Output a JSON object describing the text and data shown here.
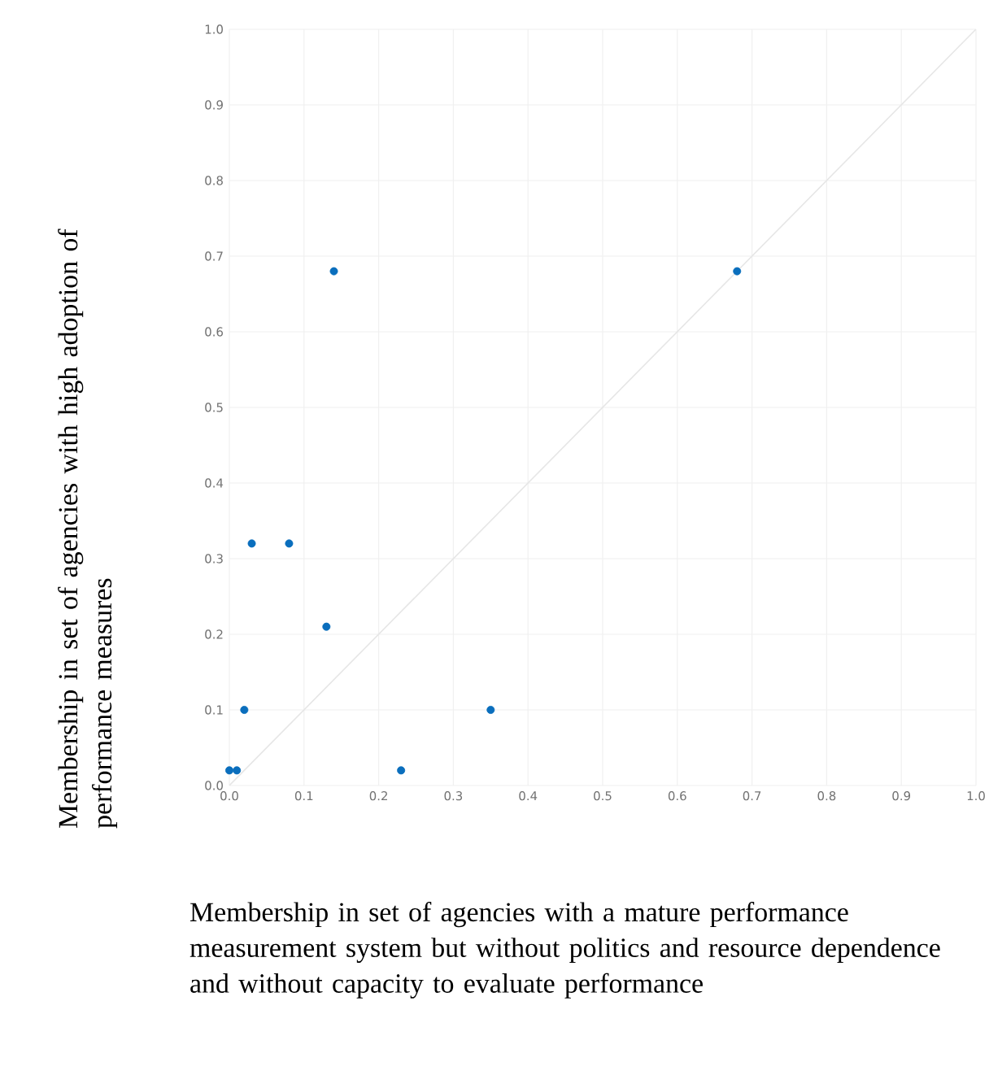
{
  "chart_data": {
    "type": "scatter",
    "xlabel": "Membership in set of agencies with a mature performance measurement system but without politics and resource dependence and without capacity to evaluate performance",
    "ylabel": "Membership in set of agencies with high adoption of performance measures",
    "series": [
      {
        "type": "scatter",
        "color": "#0a6ebd",
        "marker": "circle",
        "x": [
          0.0,
          0.01,
          0.02,
          0.03,
          0.08,
          0.13,
          0.14,
          0.23,
          0.35,
          0.68
        ],
        "values": [
          0.02,
          0.02,
          0.1,
          0.32,
          0.32,
          0.21,
          0.68,
          0.02,
          0.1,
          0.68
        ]
      },
      {
        "type": "line",
        "color": "#e6e6e6",
        "marker": "none",
        "x": [
          0,
          1
        ],
        "values": [
          0,
          1
        ]
      }
    ],
    "xlim": [
      0,
      1
    ],
    "ylim": [
      0,
      1
    ],
    "xticks": [
      {
        "value": 0,
        "label": "0.0"
      },
      0.1,
      0.2,
      0.3,
      0.4,
      0.5,
      0.6,
      0.7,
      0.8,
      0.9,
      {
        "value": 1,
        "label": "1.0"
      }
    ],
    "yticks": [
      {
        "value": 0,
        "label": "0.0"
      },
      0.1,
      0.2,
      0.3,
      0.4,
      0.5,
      0.6,
      0.7,
      0.8,
      0.9,
      {
        "value": 1,
        "label": "1.0"
      }
    ],
    "grid": true
  }
}
